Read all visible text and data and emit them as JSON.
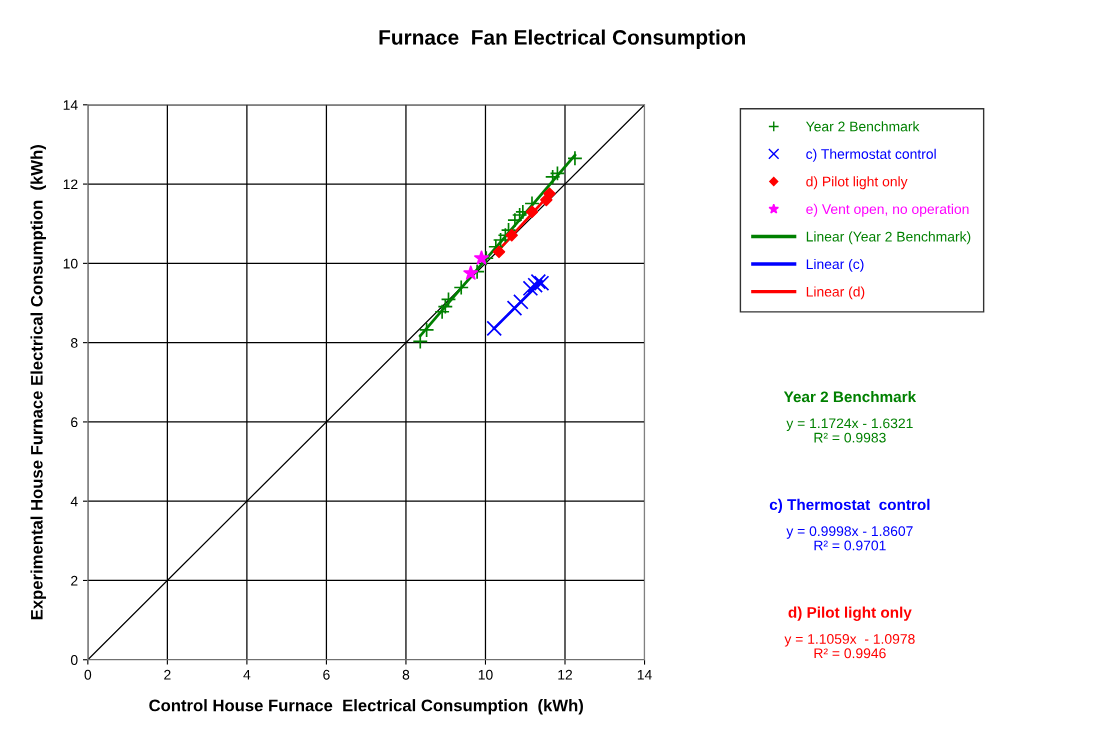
{
  "chart_data": {
    "type": "scatter",
    "title": "Furnace  Fan Electrical Consumption",
    "xlabel": "Control House Furnace  Electrical Consumption  (kWh)",
    "ylabel": "Experimental House Furnace Electrical Consumption  (kWh)",
    "xlim": [
      0,
      14
    ],
    "ylim": [
      0,
      14
    ],
    "xticks": [
      0,
      2,
      4,
      6,
      8,
      10,
      12,
      14
    ],
    "yticks": [
      0,
      2,
      4,
      6,
      8,
      10,
      12,
      14
    ],
    "grid": true,
    "legend": "right",
    "series": [
      {
        "name": "Year 2 Benchmark",
        "color": "#008000",
        "marker": "plus",
        "x": [
          8.36,
          8.52,
          8.91,
          8.99,
          9.07,
          9.39,
          9.79,
          10.02,
          10.26,
          10.38,
          10.5,
          10.58,
          10.74,
          10.86,
          10.94,
          11.17,
          11.69,
          11.81,
          12.25
        ],
        "values": [
          8.03,
          8.32,
          8.78,
          8.91,
          9.09,
          9.39,
          9.79,
          10.13,
          10.42,
          10.59,
          10.71,
          10.84,
          11.09,
          11.22,
          11.3,
          11.51,
          12.18,
          12.27,
          12.65
        ]
      },
      {
        "name": "c) Thermostat control",
        "color": "#0000ff",
        "marker": "cross",
        "x": [
          10.22,
          10.73,
          10.89,
          11.13,
          11.25,
          11.33,
          11.41
        ],
        "values": [
          8.36,
          8.87,
          9.03,
          9.37,
          9.45,
          9.54,
          9.5
        ]
      },
      {
        "name": "d) Pilot light only",
        "color": "#ff0000",
        "marker": "diamond",
        "x": [
          10.34,
          10.66,
          11.17,
          11.53,
          11.61
        ],
        "values": [
          10.29,
          10.71,
          11.3,
          11.6,
          11.76
        ]
      },
      {
        "name": "e) Vent open, no operation",
        "color": "#ff00ff",
        "marker": "star",
        "x": [
          9.63,
          9.9
        ],
        "values": [
          9.75,
          10.13
        ]
      },
      {
        "name": "Linear (Year 2 Benchmark)",
        "type": "line",
        "color": "#008000",
        "x": [
          8.36,
          12.25
        ],
        "values": [
          8.17,
          12.73
        ]
      },
      {
        "name": "Linear (c)",
        "type": "line",
        "color": "#0000ff",
        "x": [
          10.22,
          11.41
        ],
        "values": [
          8.36,
          9.55
        ]
      },
      {
        "name": "Linear (d)",
        "type": "line",
        "color": "#ff0000",
        "x": [
          10.34,
          11.61
        ],
        "values": [
          10.34,
          11.74
        ]
      },
      {
        "type": "line",
        "color": "#000000",
        "x": [
          0,
          14
        ],
        "values": [
          0,
          14
        ]
      }
    ],
    "annotations": [
      "Year 2 Benchmark",
      "y = 1.1724x - 1.6321",
      "R² = 0.9983",
      "c) Thermostat  control",
      "y = 0.9998x - 1.8607",
      "R² = 0.9701",
      "d) Pilot light only",
      "y = 1.1059x  - 1.0978",
      "R² = 0.9946"
    ]
  }
}
